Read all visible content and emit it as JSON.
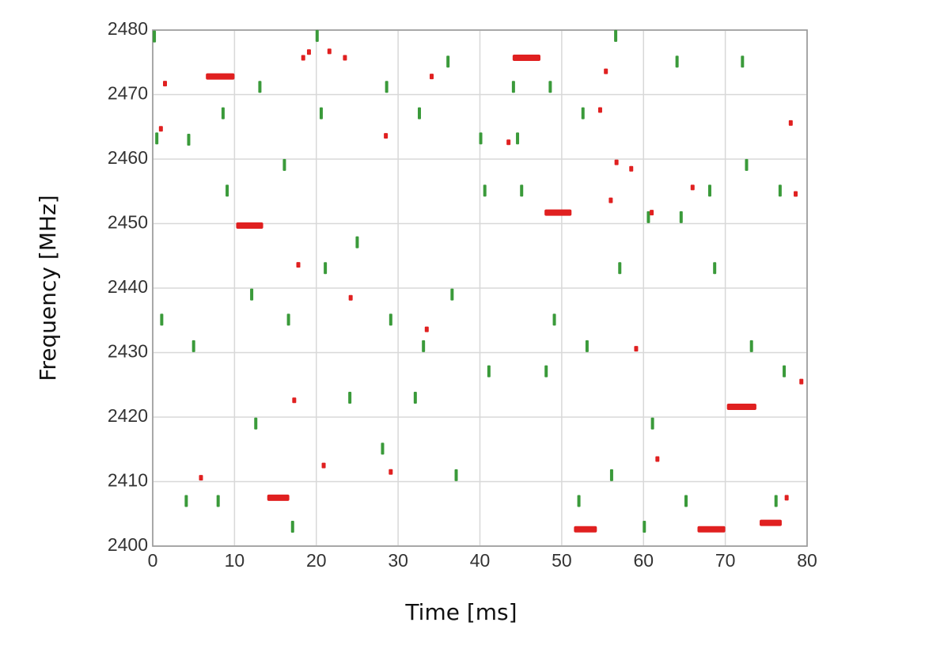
{
  "chart_data": {
    "type": "scatter",
    "x_label": "Time [ms]",
    "y_label": "Frequency [MHz]",
    "xlim": [
      0,
      80
    ],
    "xticks": [
      0,
      10,
      20,
      30,
      40,
      50,
      60,
      70,
      80
    ],
    "ylim": [
      2400,
      2480
    ],
    "yticks": [
      2400,
      2410,
      2420,
      2430,
      2440,
      2450,
      2460,
      2470,
      2480
    ],
    "grid": true,
    "series": [
      {
        "color": "#3a9a3a",
        "x": [
          0.2,
          0.5,
          1.1,
          4.1,
          4.4,
          5.0,
          8.0,
          8.6,
          9.1,
          12.1,
          12.6,
          13.1,
          16.1,
          16.6,
          17.1,
          20.1,
          20.6,
          21.1,
          24.1,
          25.0,
          28.1,
          28.6,
          29.1,
          32.1,
          32.6,
          33.1,
          36.1,
          36.6,
          37.1,
          40.1,
          40.6,
          41.1,
          44.1,
          44.6,
          45.1,
          48.1,
          48.6,
          49.1,
          52.1,
          52.6,
          53.1,
          56.1,
          56.6,
          57.1,
          60.1,
          60.6,
          61.1,
          64.1,
          64.6,
          65.2,
          68.1,
          68.7,
          72.1,
          72.6,
          73.2,
          76.2,
          76.7,
          77.2
        ],
        "values": [
          2479,
          2463.2,
          2435.1,
          2407,
          2463,
          2431,
          2407,
          2467.1,
          2455.1,
          2439,
          2419,
          2471.2,
          2459.1,
          2435.1,
          2403,
          2479.1,
          2467.1,
          2443.1,
          2423,
          2447.1,
          2415.1,
          2471.2,
          2435.1,
          2423,
          2467.1,
          2431,
          2475.1,
          2439,
          2411,
          2463.2,
          2455.1,
          2427.1,
          2471.2,
          2463.2,
          2455.1,
          2427.1,
          2471.2,
          2435.1,
          2407,
          2467.1,
          2431,
          2411,
          2479.1,
          2443.1,
          2403,
          2451,
          2419,
          2475.1,
          2451,
          2407,
          2455.1,
          2443.1,
          2475.1,
          2459.1,
          2431,
          2407,
          2455.1,
          2427.1
        ]
      },
      {
        "color": "#e02020",
        "x": [
          1.0,
          1.5,
          5.9,
          17.3,
          17.8,
          18.4,
          19.1,
          20.9,
          21.6,
          23.5,
          24.2,
          28.5,
          29.1,
          33.5,
          34.1,
          43.5,
          54.7,
          55.4,
          56.0,
          56.7,
          58.5,
          59.1,
          61.0,
          61.7,
          66.0,
          77.5,
          78.0,
          78.6,
          79.3
        ],
        "values": [
          2464.7,
          2471.7,
          2410.6,
          2422.6,
          2443.6,
          2475.7,
          2476.6,
          2412.5,
          2476.7,
          2475.7,
          2438.5,
          2463.6,
          2411.5,
          2433.6,
          2472.8,
          2462.6,
          2467.6,
          2473.6,
          2453.6,
          2459.5,
          2458.5,
          2430.6,
          2451.7,
          2413.5,
          2455.6,
          2407.5,
          2465.6,
          2454.6,
          2425.5
        ]
      },
      {
        "color": "#e02020",
        "x": [
          6.5,
          10.2,
          14.0,
          44.0,
          47.9,
          51.5,
          66.6,
          70.2,
          74.2
        ],
        "x_end": [
          10.0,
          13.5,
          16.7,
          47.4,
          51.2,
          54.3,
          70.0,
          73.8,
          76.9
        ],
        "values": [
          2472.8,
          2449.7,
          2407.5,
          2475.7,
          2451.7,
          2402.6,
          2402.6,
          2421.6,
          2403.6
        ]
      }
    ]
  }
}
